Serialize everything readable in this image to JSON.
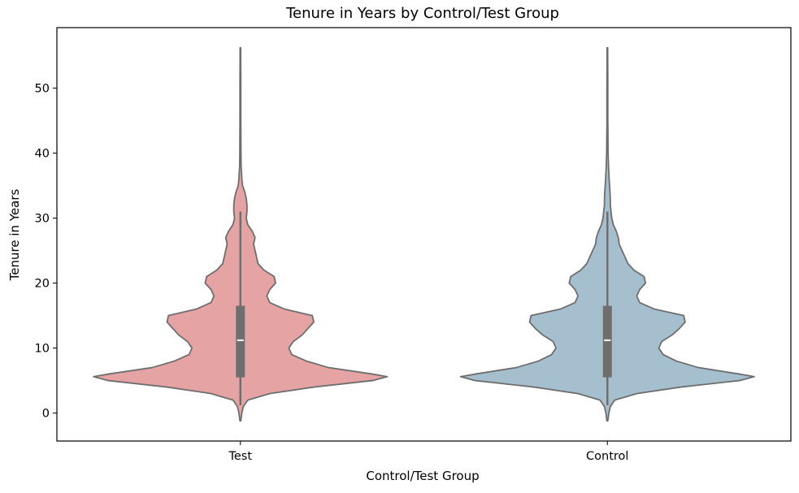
{
  "chart_data": {
    "type": "violin",
    "title": "Tenure in Years by Control/Test Group",
    "xlabel": "Control/Test Group",
    "ylabel": "Tenure in Years",
    "categories": [
      "Test",
      "Control"
    ],
    "ylim": [
      -4.3,
      59.3
    ],
    "yticks": [
      0,
      10,
      20,
      30,
      40,
      50
    ],
    "grid": false,
    "legend": "none",
    "colors": {
      "Test": "#e5a4a3",
      "Control": "#a5bfce",
      "outline": "#6e6e6e",
      "box": "#6e6e6e",
      "median": "#ffffff"
    },
    "series": [
      {
        "category": "Test",
        "min": -1.2,
        "max": 56.2,
        "q1": 5.5,
        "median": 11.2,
        "q3": 16.5,
        "whisker_low": 1.2,
        "whisker_high": 31,
        "density": [
          [
            -1.2,
            0.003
          ],
          [
            0,
            0.01
          ],
          [
            1,
            0.02
          ],
          [
            2,
            0.05
          ],
          [
            3,
            0.2
          ],
          [
            4,
            0.5
          ],
          [
            5,
            0.9
          ],
          [
            5.6,
            1.0
          ],
          [
            6,
            0.9
          ],
          [
            7,
            0.6
          ],
          [
            8,
            0.45
          ],
          [
            9,
            0.35
          ],
          [
            10,
            0.33
          ],
          [
            11,
            0.36
          ],
          [
            12,
            0.42
          ],
          [
            13,
            0.46
          ],
          [
            14,
            0.5
          ],
          [
            15,
            0.49
          ],
          [
            16,
            0.3
          ],
          [
            17,
            0.2
          ],
          [
            18,
            0.18
          ],
          [
            19,
            0.2
          ],
          [
            20,
            0.24
          ],
          [
            21,
            0.23
          ],
          [
            22,
            0.16
          ],
          [
            23,
            0.12
          ],
          [
            24,
            0.11
          ],
          [
            25,
            0.1
          ],
          [
            26,
            0.09
          ],
          [
            27,
            0.1
          ],
          [
            28,
            0.08
          ],
          [
            29,
            0.05
          ],
          [
            30,
            0.04
          ],
          [
            31,
            0.045
          ],
          [
            32,
            0.045
          ],
          [
            33,
            0.04
          ],
          [
            34,
            0.03
          ],
          [
            35,
            0.015
          ],
          [
            36,
            0.01
          ],
          [
            37,
            0.008
          ],
          [
            38,
            0.005
          ],
          [
            40,
            0.004
          ],
          [
            45,
            0.003
          ],
          [
            50,
            0.003
          ],
          [
            56.2,
            0.002
          ]
        ]
      },
      {
        "category": "Control",
        "min": -1.2,
        "max": 56.2,
        "q1": 5.5,
        "median": 11.2,
        "q3": 16.5,
        "whisker_low": 1.2,
        "whisker_high": 31,
        "density": [
          [
            -1.2,
            0.003
          ],
          [
            0,
            0.01
          ],
          [
            1,
            0.02
          ],
          [
            2,
            0.05
          ],
          [
            3,
            0.2
          ],
          [
            4,
            0.5
          ],
          [
            5,
            0.9
          ],
          [
            5.6,
            1.0
          ],
          [
            6,
            0.9
          ],
          [
            7,
            0.62
          ],
          [
            8,
            0.47
          ],
          [
            9,
            0.38
          ],
          [
            10,
            0.35
          ],
          [
            11,
            0.37
          ],
          [
            12,
            0.44
          ],
          [
            13,
            0.49
          ],
          [
            14,
            0.53
          ],
          [
            15,
            0.52
          ],
          [
            16,
            0.32
          ],
          [
            17,
            0.22
          ],
          [
            18,
            0.2
          ],
          [
            19,
            0.22
          ],
          [
            20,
            0.26
          ],
          [
            21,
            0.25
          ],
          [
            22,
            0.18
          ],
          [
            23,
            0.14
          ],
          [
            24,
            0.12
          ],
          [
            25,
            0.1
          ],
          [
            26,
            0.08
          ],
          [
            27,
            0.075
          ],
          [
            28,
            0.06
          ],
          [
            29,
            0.04
          ],
          [
            30,
            0.03
          ],
          [
            31,
            0.025
          ],
          [
            32,
            0.02
          ],
          [
            33,
            0.02
          ],
          [
            34,
            0.018
          ],
          [
            35,
            0.015
          ],
          [
            36,
            0.012
          ],
          [
            37,
            0.01
          ],
          [
            38,
            0.008
          ],
          [
            40,
            0.005
          ],
          [
            45,
            0.003
          ],
          [
            50,
            0.003
          ],
          [
            56.2,
            0.002
          ]
        ]
      }
    ]
  }
}
